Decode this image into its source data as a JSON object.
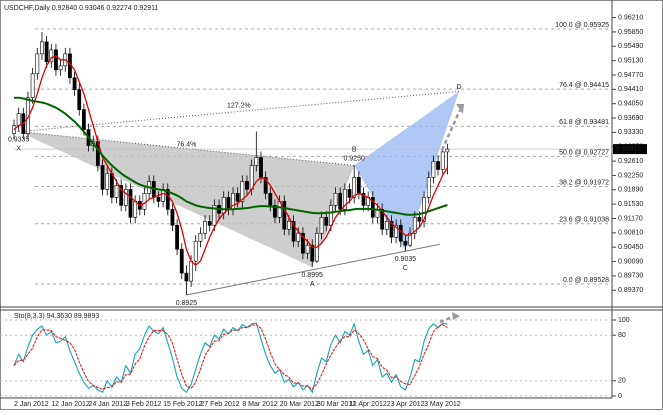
{
  "chart_data": {
    "type": "candlestick",
    "title": "USDCHF,Daily  0.92840 0.93046 0.92274 0.92911",
    "categories": [
      "2 Jan 2012",
      null,
      null,
      null,
      null,
      null,
      null,
      null,
      "12 Jan 2012",
      null,
      null,
      null,
      null,
      null,
      null,
      null,
      "24 Jan 2012",
      null,
      null,
      null,
      null,
      null,
      null,
      null,
      "3 Feb 2012",
      null,
      null,
      null,
      null,
      null,
      null,
      null,
      "15 Feb 2012",
      null,
      null,
      null,
      null,
      null,
      null,
      null,
      "27 Feb 2012",
      null,
      null,
      null,
      null,
      null,
      null,
      null,
      null,
      "8 Mar 2012",
      null,
      null,
      null,
      null,
      null,
      null,
      null,
      "20 Mar 2012",
      null,
      null,
      null,
      null,
      null,
      null,
      null,
      "30 Mar 2012",
      null,
      null,
      null,
      null,
      null,
      null,
      "11 Apr 2012",
      null,
      null,
      null,
      null,
      null,
      null,
      null,
      "23 Apr 2012",
      null,
      null,
      null,
      null,
      null,
      null,
      null,
      "3 May 2012",
      null,
      null,
      null,
      null,
      null
    ],
    "candles": [
      [
        0.933,
        0.9365,
        0.9315,
        0.935
      ],
      [
        0.935,
        0.9395,
        0.9335,
        0.938
      ],
      [
        0.938,
        0.9395,
        0.9315,
        0.933
      ],
      [
        0.933,
        0.9435,
        0.9315,
        0.942
      ],
      [
        0.942,
        0.9495,
        0.9405,
        0.948
      ],
      [
        0.948,
        0.9545,
        0.9465,
        0.953
      ],
      [
        0.953,
        0.9585,
        0.9515,
        0.956
      ],
      [
        0.956,
        0.9575,
        0.9495,
        0.951
      ],
      [
        0.951,
        0.9555,
        0.9495,
        0.954
      ],
      [
        0.954,
        0.9555,
        0.9475,
        0.949
      ],
      [
        0.949,
        0.9515,
        0.9475,
        0.95
      ],
      [
        0.95,
        0.9545,
        0.9485,
        0.953
      ],
      [
        0.953,
        0.9545,
        0.9455,
        0.947
      ],
      [
        0.947,
        0.9485,
        0.9425,
        0.944
      ],
      [
        0.944,
        0.9455,
        0.9375,
        0.939
      ],
      [
        0.939,
        0.9405,
        0.9325,
        0.934
      ],
      [
        0.934,
        0.9355,
        0.9285,
        0.93
      ],
      [
        0.93,
        0.9325,
        0.9285,
        0.931
      ],
      [
        0.931,
        0.9325,
        0.9235,
        0.925
      ],
      [
        0.925,
        0.9265,
        0.9175,
        0.919
      ],
      [
        0.919,
        0.9245,
        0.9175,
        0.923
      ],
      [
        0.923,
        0.9245,
        0.9155,
        0.917
      ],
      [
        0.917,
        0.9215,
        0.9155,
        0.92
      ],
      [
        0.92,
        0.9215,
        0.9135,
        0.915
      ],
      [
        0.915,
        0.9205,
        0.9135,
        0.919
      ],
      [
        0.919,
        0.9205,
        0.9105,
        0.912
      ],
      [
        0.912,
        0.9175,
        0.9105,
        0.916
      ],
      [
        0.916,
        0.9175,
        0.9125,
        0.914
      ],
      [
        0.914,
        0.9195,
        0.9125,
        0.918
      ],
      [
        0.918,
        0.9225,
        0.9165,
        0.921
      ],
      [
        0.921,
        0.9225,
        0.9155,
        0.917
      ],
      [
        0.917,
        0.9185,
        0.9145,
        0.916
      ],
      [
        0.916,
        0.9205,
        0.9145,
        0.919
      ],
      [
        0.919,
        0.9205,
        0.9125,
        0.914
      ],
      [
        0.914,
        0.9155,
        0.9085,
        0.91
      ],
      [
        0.91,
        0.9115,
        0.9025,
        0.904
      ],
      [
        0.904,
        0.9055,
        0.8965,
        0.898
      ],
      [
        0.898,
        0.9,
        0.8925,
        0.896
      ],
      [
        0.896,
        0.9025,
        0.8945,
        0.901
      ],
      [
        0.901,
        0.9075,
        0.8985,
        0.906
      ],
      [
        0.906,
        0.9095,
        0.9045,
        0.908
      ],
      [
        0.908,
        0.9125,
        0.9065,
        0.911
      ],
      [
        0.911,
        0.9125,
        0.9085,
        0.91
      ],
      [
        0.91,
        0.9165,
        0.9085,
        0.915
      ],
      [
        0.915,
        0.9165,
        0.9115,
        0.913
      ],
      [
        0.913,
        0.9185,
        0.9115,
        0.917
      ],
      [
        0.917,
        0.9185,
        0.9125,
        0.914
      ],
      [
        0.914,
        0.9195,
        0.9125,
        0.918
      ],
      [
        0.918,
        0.9195,
        0.9145,
        0.916
      ],
      [
        0.916,
        0.9225,
        0.9145,
        0.921
      ],
      [
        0.921,
        0.9225,
        0.9175,
        0.919
      ],
      [
        0.919,
        0.9265,
        0.9175,
        0.925
      ],
      [
        0.925,
        0.9335,
        0.9235,
        0.927
      ],
      [
        0.927,
        0.9285,
        0.9205,
        0.922
      ],
      [
        0.922,
        0.9235,
        0.9165,
        0.918
      ],
      [
        0.918,
        0.9195,
        0.9135,
        0.915
      ],
      [
        0.915,
        0.9165,
        0.9105,
        0.912
      ],
      [
        0.912,
        0.9175,
        0.9105,
        0.916
      ],
      [
        0.916,
        0.9175,
        0.9075,
        0.909
      ],
      [
        0.909,
        0.9125,
        0.9075,
        0.911
      ],
      [
        0.911,
        0.9125,
        0.9045,
        0.906
      ],
      [
        0.906,
        0.9095,
        0.9045,
        0.908
      ],
      [
        0.908,
        0.9095,
        0.9015,
        0.903
      ],
      [
        0.903,
        0.9065,
        0.9015,
        0.905
      ],
      [
        0.905,
        0.9065,
        0.8995,
        0.901
      ],
      [
        0.901,
        0.9095,
        0.9005,
        0.908
      ],
      [
        0.908,
        0.9135,
        0.9065,
        0.912
      ],
      [
        0.912,
        0.9135,
        0.9085,
        0.91
      ],
      [
        0.91,
        0.9165,
        0.9085,
        0.915
      ],
      [
        0.915,
        0.9195,
        0.9135,
        0.918
      ],
      [
        0.918,
        0.9195,
        0.9125,
        0.914
      ],
      [
        0.914,
        0.9205,
        0.9125,
        0.919
      ],
      [
        0.919,
        0.9205,
        0.9155,
        0.917
      ],
      [
        0.917,
        0.925,
        0.9155,
        0.922
      ],
      [
        0.922,
        0.9235,
        0.9165,
        0.918
      ],
      [
        0.918,
        0.9195,
        0.9135,
        0.915
      ],
      [
        0.915,
        0.9185,
        0.9135,
        0.917
      ],
      [
        0.917,
        0.9185,
        0.9105,
        0.912
      ],
      [
        0.912,
        0.9155,
        0.9105,
        0.914
      ],
      [
        0.914,
        0.9155,
        0.9075,
        0.909
      ],
      [
        0.909,
        0.9125,
        0.9075,
        0.911
      ],
      [
        0.911,
        0.9125,
        0.9055,
        0.907
      ],
      [
        0.907,
        0.9115,
        0.9055,
        0.91
      ],
      [
        0.91,
        0.9115,
        0.9045,
        0.906
      ],
      [
        0.906,
        0.9075,
        0.9035,
        0.905
      ],
      [
        0.905,
        0.9095,
        0.9045,
        0.908
      ],
      [
        0.908,
        0.9135,
        0.9065,
        0.912
      ],
      [
        0.912,
        0.9135,
        0.9095,
        0.911
      ],
      [
        0.911,
        0.9185,
        0.9095,
        0.917
      ],
      [
        0.917,
        0.9235,
        0.9155,
        0.922
      ],
      [
        0.922,
        0.9275,
        0.9205,
        0.926
      ],
      [
        0.926,
        0.9275,
        0.9225,
        0.924
      ],
      [
        0.924,
        0.9299,
        0.9225,
        0.9284
      ],
      [
        0.9284,
        0.93046,
        0.92274,
        0.92911
      ]
    ],
    "series": [
      {
        "color": "#e00000",
        "values": [
          0.934,
          0.935,
          0.9355,
          0.937,
          0.9395,
          0.943,
          0.947,
          0.95,
          0.952,
          0.9525,
          0.9515,
          0.9515,
          0.9505,
          0.949,
          0.946,
          0.943,
          0.939,
          0.935,
          0.931,
          0.927,
          0.925,
          0.923,
          0.921,
          0.919,
          0.918,
          0.917,
          0.916,
          0.915,
          0.9155,
          0.9165,
          0.917,
          0.9175,
          0.918,
          0.9175,
          0.916,
          0.913,
          0.909,
          0.904,
          0.901,
          0.9,
          0.901,
          0.904,
          0.907,
          0.9095,
          0.9115,
          0.913,
          0.914,
          0.915,
          0.9155,
          0.9165,
          0.9175,
          0.919,
          0.921,
          0.922,
          0.9215,
          0.92,
          0.918,
          0.916,
          0.914,
          0.912,
          0.91,
          0.9085,
          0.907,
          0.906,
          0.9045,
          0.9045,
          0.9055,
          0.907,
          0.9095,
          0.912,
          0.9135,
          0.915,
          0.916,
          0.9175,
          0.918,
          0.9175,
          0.917,
          0.916,
          0.915,
          0.9135,
          0.912,
          0.9105,
          0.9095,
          0.9085,
          0.9075,
          0.9075,
          0.9085,
          0.9095,
          0.9115,
          0.9145,
          0.9175,
          0.92,
          0.9225,
          0.9245
        ]
      },
      {
        "color": "#006400",
        "values": [
          0.942,
          0.942,
          0.9418,
          0.9415,
          0.9412,
          0.941,
          0.9408,
          0.9405,
          0.94,
          0.9395,
          0.9388,
          0.938,
          0.937,
          0.936,
          0.9348,
          0.9335,
          0.932,
          0.9305,
          0.929,
          0.9275,
          0.9262,
          0.925,
          0.924,
          0.923,
          0.9222,
          0.9215,
          0.9208,
          0.9202,
          0.9198,
          0.9195,
          0.9192,
          0.919,
          0.9188,
          0.9185,
          0.918,
          0.9175,
          0.9168,
          0.916,
          0.9155,
          0.915,
          0.9147,
          0.9145,
          0.9143,
          0.9142,
          0.9141,
          0.914,
          0.914,
          0.914,
          0.9141,
          0.9142,
          0.9143,
          0.9145,
          0.9147,
          0.9148,
          0.9148,
          0.9147,
          0.9146,
          0.9145,
          0.9143,
          0.9141,
          0.9139,
          0.9137,
          0.9135,
          0.9133,
          0.9131,
          0.913,
          0.913,
          0.9131,
          0.9132,
          0.9134,
          0.9135,
          0.9137,
          0.9138,
          0.914,
          0.9141,
          0.9141,
          0.9141,
          0.914,
          0.9139,
          0.9137,
          0.9135,
          0.9133,
          0.9131,
          0.9129,
          0.9127,
          0.9126,
          0.9127,
          0.9128,
          0.9131,
          0.9135,
          0.9139,
          0.9143,
          0.9147,
          0.9151
        ]
      }
    ],
    "ylim": [
      0.8905,
      0.963
    ],
    "yticks": [
      {
        "value": 0.9621,
        "label": "0.96210"
      },
      {
        "value": 0.9585,
        "label": "0.95850"
      },
      {
        "value": 0.9549,
        "label": "0.95490"
      },
      {
        "value": 0.9513,
        "label": "0.95130"
      },
      {
        "value": 0.9477,
        "label": "0.94770"
      },
      {
        "value": 0.9441,
        "label": "0.94410"
      },
      {
        "value": 0.9405,
        "label": "0.94050"
      },
      {
        "value": 0.9369,
        "label": "0.93690"
      },
      {
        "value": 0.9333,
        "label": "0.93330"
      },
      {
        "value": 0.9297,
        "label": "0.92970"
      },
      {
        "value": 0.9261,
        "label": "0.92610"
      },
      {
        "value": 0.9225,
        "label": "0.92250"
      },
      {
        "value": 0.9189,
        "label": "0.91890"
      },
      {
        "value": 0.9153,
        "label": "0.91530"
      },
      {
        "value": 0.9117,
        "label": "0.91170"
      },
      {
        "value": 0.9081,
        "label": "0.90810"
      },
      {
        "value": 0.9045,
        "label": "0.90450"
      },
      {
        "value": 0.9009,
        "label": "0.90090"
      },
      {
        "value": 0.8973,
        "label": "0.89730"
      },
      {
        "value": 0.8937,
        "label": "0.89370"
      }
    ],
    "fib_levels": [
      {
        "label": "100.0 @ 0.95925",
        "value": 0.95925
      },
      {
        "label": "76.4 @ 0.94415",
        "value": 0.94415
      },
      {
        "label": "61.8 @ 0.93481",
        "value": 0.93481
      },
      {
        "label": "50.0 @ 0.92727",
        "value": 0.92727
      },
      {
        "label": "38.2 @ 0.91972",
        "value": 0.91972
      },
      {
        "label": "23.6 @ 0.91038",
        "value": 0.91038
      },
      {
        "label": "0.0 @ 0.89528",
        "value": 0.89528
      }
    ],
    "pattern": {
      "points": [
        {
          "name": "X",
          "label": "0.9335",
          "value": 0.9335
        },
        {
          "name": "A",
          "label": "0.8995",
          "value": 0.8995
        },
        {
          "name": "B",
          "label": "0.9250",
          "value": 0.925
        },
        {
          "name": "C",
          "label": "0.9035",
          "value": 0.9035
        },
        {
          "name": "D",
          "value": 0.9436
        }
      ],
      "ratios": [
        "76.4%",
        "127.2%"
      ]
    },
    "annotations": [
      {
        "label": "0.8925",
        "value": 0.8925
      }
    ],
    "stochastic": {
      "type": "line",
      "title": "Sto(8,3,3) 94.3630 89.9893",
      "ylim": [
        0,
        100
      ],
      "yticks": [
        0,
        20,
        80,
        100
      ],
      "series": [
        {
          "color": "#12a6b8",
          "values": [
            40,
            55,
            45,
            65,
            80,
            88,
            92,
            80,
            85,
            70,
            72,
            78,
            60,
            45,
            30,
            18,
            10,
            14,
            8,
            5,
            20,
            12,
            25,
            18,
            40,
            30,
            55,
            62,
            80,
            92,
            85,
            82,
            90,
            70,
            50,
            25,
            10,
            5,
            15,
            35,
            55,
            70,
            65,
            80,
            75,
            88,
            82,
            90,
            86,
            94,
            90,
            95,
            96,
            75,
            55,
            40,
            30,
            35,
            18,
            22,
            12,
            18,
            8,
            14,
            5,
            30,
            50,
            45,
            68,
            80,
            70,
            85,
            80,
            95,
            72,
            55,
            60,
            40,
            48,
            25,
            30,
            18,
            28,
            12,
            8,
            25,
            48,
            45,
            72,
            88,
            95,
            90,
            96,
            94.363
          ]
        },
        {
          "color": "#e02020",
          "values": [
            40,
            47,
            47,
            55,
            63,
            78,
            87,
            87,
            86,
            78,
            76,
            73,
            70,
            61,
            45,
            31,
            19,
            14,
            11,
            9,
            11,
            12,
            19,
            18,
            28,
            29,
            42,
            49,
            66,
            78,
            86,
            86,
            86,
            81,
            70,
            48,
            28,
            13,
            10,
            18,
            35,
            53,
            63,
            72,
            73,
            81,
            82,
            87,
            86,
            90,
            90,
            93,
            94,
            89,
            75,
            57,
            42,
            35,
            28,
            25,
            17,
            17,
            13,
            13,
            9,
            16,
            28,
            42,
            54,
            64,
            73,
            78,
            78,
            87,
            82,
            74,
            62,
            52,
            49,
            38,
            34,
            24,
            25,
            19,
            16,
            15,
            27,
            39,
            55,
            68,
            85,
            91,
            94,
            89.9893
          ]
        }
      ]
    }
  }
}
